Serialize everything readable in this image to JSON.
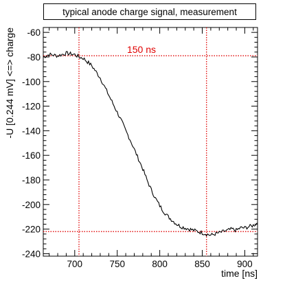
{
  "chart_data": {
    "type": "line",
    "title": "typical anode charge signal, measurement",
    "xlabel": "time [ns]",
    "ylabel": "-U [0.244 mV] <=> charge",
    "xlim": [
      663,
      915
    ],
    "ylim": [
      -242,
      -56
    ],
    "xticks": [
      700,
      750,
      800,
      850,
      900
    ],
    "yticks": [
      -60,
      -80,
      -100,
      -120,
      -140,
      -160,
      -180,
      -200,
      -220,
      -240
    ],
    "grid": false,
    "colors": {
      "series": "#000000",
      "annotation": "#e00000"
    },
    "annotation": {
      "text": "150 ns",
      "vlines": [
        705,
        855
      ],
      "hlines": [
        -79,
        -222
      ]
    },
    "series": [
      {
        "x": [
          663,
          670,
          680,
          690,
          700,
          705,
          710,
          715,
          720,
          725,
          730,
          735,
          740,
          745,
          750,
          755,
          760,
          765,
          770,
          775,
          780,
          785,
          790,
          795,
          800,
          805,
          810,
          815,
          820,
          825,
          830,
          835,
          840,
          845,
          850,
          855,
          860,
          865,
          870,
          875,
          880,
          885,
          890,
          895,
          900,
          905,
          910,
          915
        ],
        "y": [
          -80,
          -78,
          -79,
          -77,
          -78,
          -80,
          -81,
          -84,
          -87,
          -92,
          -97,
          -104,
          -111,
          -118,
          -125,
          -132,
          -140,
          -147,
          -155,
          -163,
          -171,
          -180,
          -188,
          -195,
          -201,
          -206,
          -210,
          -213,
          -216,
          -218,
          -219,
          -220,
          -221,
          -222,
          -223,
          -224,
          -225,
          -224,
          -223,
          -222,
          -221,
          -220,
          -221,
          -219,
          -219,
          -218,
          -217,
          -215
        ]
      }
    ]
  }
}
